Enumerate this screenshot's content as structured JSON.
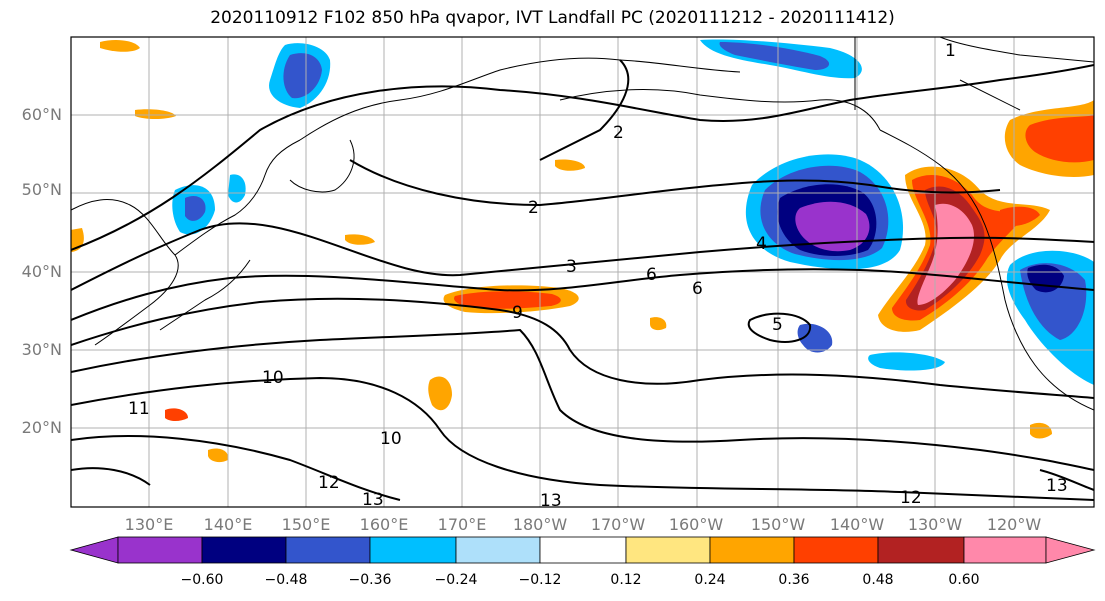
{
  "title": "2020110912 F102 850 hPa qvapor, IVT Landfall PC (2020111212 - 2020111412)",
  "lat_labels": [
    "60°N",
    "50°N",
    "40°N",
    "30°N",
    "20°N"
  ],
  "lon_labels": [
    "130°E",
    "140°E",
    "150°E",
    "160°E",
    "170°E",
    "180°W",
    "170°W",
    "160°W",
    "150°W",
    "140°W",
    "130°W",
    "120°W"
  ],
  "contour_labels": [
    "1",
    "2",
    "2",
    "3",
    "4",
    "5",
    "6",
    "6",
    "9",
    "10",
    "10",
    "11",
    "12",
    "12",
    "13",
    "13",
    "13"
  ],
  "colorbar": {
    "tick_labels": [
      "−0.60",
      "−0.48",
      "−0.36",
      "−0.24",
      "−0.12",
      "0.12",
      "0.24",
      "0.36",
      "0.48",
      "0.60"
    ],
    "colors": [
      "#9933cc",
      "#000080",
      "#3355cc",
      "#00bfff",
      "#aee0fa",
      "#ffffff",
      "#ffe680",
      "#ffa500",
      "#ff4000",
      "#b22222",
      "#ff88aa"
    ]
  }
}
